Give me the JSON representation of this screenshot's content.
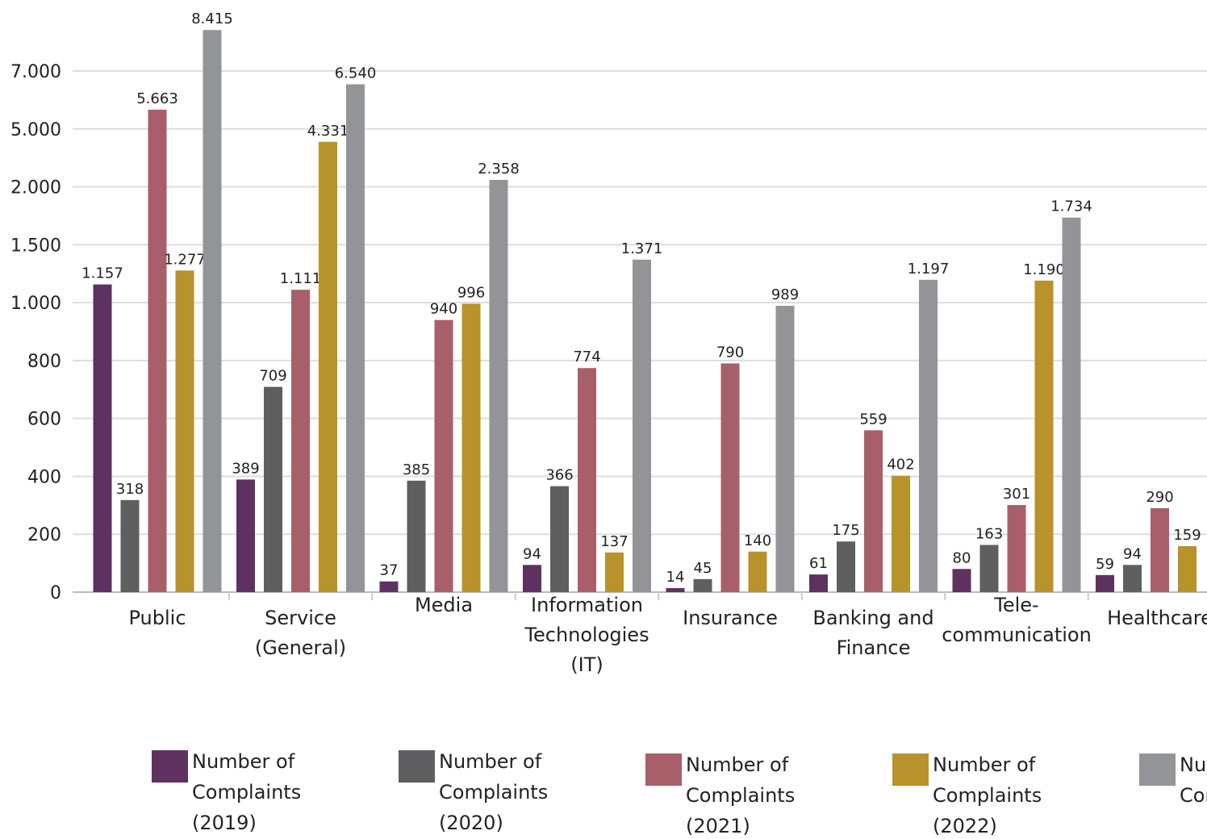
{
  "chart_data": {
    "type": "bar",
    "categories": [
      "Public",
      "Service\n(General)",
      "Media",
      "Information\nTechnologies\n(IT)",
      "Insurance",
      "Banking and\nFinance",
      "Tele-\ncommunication",
      "Healthcare"
    ],
    "series": [
      {
        "name": "Number of\nComplaints\n(2019)",
        "color": "#5e3160",
        "values": [
          1157,
          389,
          37,
          94,
          14,
          61,
          80,
          59
        ],
        "value_labels": [
          "1.157",
          "389",
          "37",
          "94",
          "14",
          "61",
          "80",
          "59"
        ]
      },
      {
        "name": "Number of\nComplaints\n(2020)",
        "color": "#5f5f61",
        "values": [
          318,
          709,
          385,
          366,
          45,
          175,
          163,
          94
        ],
        "value_labels": [
          "318",
          "709",
          "385",
          "366",
          "45",
          "175",
          "163",
          "94"
        ]
      },
      {
        "name": "Number of\nComplaints\n(2021)",
        "color": "#a85f6a",
        "values": [
          5663,
          1111,
          940,
          774,
          790,
          559,
          301,
          290
        ],
        "value_labels": [
          "5.663",
          "1.111",
          "940",
          "774",
          "790",
          "559",
          "301",
          "290"
        ]
      },
      {
        "name": "Number of\nComplaints\n(2022)",
        "color": "#b8922a",
        "values": [
          1277,
          4331,
          996,
          137,
          140,
          402,
          1190,
          159
        ],
        "value_labels": [
          "1.277",
          "4.331",
          "996",
          "137",
          "140",
          "402",
          "1.190",
          "159"
        ]
      },
      {
        "name": "Number of\nComplaints",
        "color": "#929497",
        "values": [
          8415,
          6540,
          2358,
          1371,
          989,
          1197,
          1734,
          null
        ],
        "value_labels": [
          "8.415",
          "6.540",
          "2.358",
          "1.371",
          "989",
          "1.197",
          "1.734",
          null
        ]
      }
    ],
    "ylim": [
      0,
      7000
    ],
    "yticks": [
      0,
      200,
      400,
      600,
      800,
      {
        "value": 1000,
        "label": "1.000"
      },
      {
        "value": 1500,
        "label": "1.500"
      },
      {
        "value": 2000,
        "label": "2.000"
      },
      {
        "value": 5000,
        "label": "5.000"
      },
      {
        "value": 7000,
        "label": "7.000"
      }
    ],
    "grid": true
  }
}
